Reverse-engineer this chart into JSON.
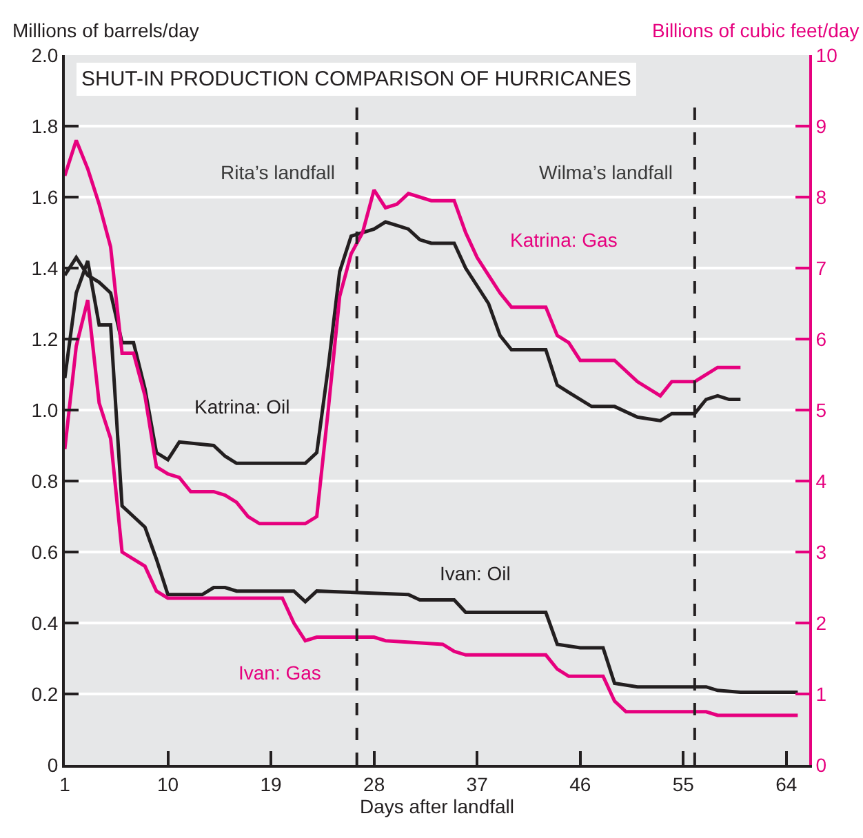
{
  "chart_data": {
    "type": "line",
    "title": "SHUT-IN PRODUCTION COMPARISON OF HURRICANES",
    "xlabel": "Days after landfall",
    "ylabel": "Millions of barrels/day",
    "y2label": "Billions of cubic feet/day",
    "xlim": [
      1,
      66
    ],
    "xticks": [
      1,
      10,
      19,
      28,
      37,
      46,
      55,
      64
    ],
    "ylim": [
      0,
      2
    ],
    "yticks": [
      0,
      0.2,
      0.4,
      0.6,
      0.8,
      {
        "value": 1,
        "label": "1.0"
      },
      1.2,
      1.4,
      1.6,
      1.8,
      {
        "value": 2,
        "label": "2.0"
      }
    ],
    "y2lim": [
      0,
      10
    ],
    "y2ticks": [
      0,
      1,
      2,
      3,
      4,
      5,
      6,
      7,
      8,
      9,
      10
    ],
    "grid": "y",
    "legend": false,
    "marker": "none",
    "line_style": "solid",
    "ref_lines": [
      {
        "axis": "x",
        "value": 26.5,
        "label": "Rita’s landfall",
        "color": "#231f20",
        "line_style": "dashed"
      },
      {
        "axis": "x",
        "value": 56,
        "label": "Wilma’s landfall",
        "color": "#231f20",
        "line_style": "dashed"
      }
    ],
    "series": [
      {
        "name": "Katrina: Oil",
        "color": "#231f20",
        "x": [
          1,
          2,
          3,
          4,
          5,
          6,
          7,
          8,
          9,
          10,
          11,
          14,
          15,
          16,
          18,
          22,
          23,
          24,
          25,
          26,
          28,
          29,
          30,
          31,
          32,
          33,
          35,
          36,
          37,
          38,
          39,
          40,
          43,
          44,
          45,
          47,
          49,
          51,
          53,
          54,
          56,
          57,
          58,
          59,
          60
        ],
        "values": [
          1.38,
          1.43,
          1.38,
          1.36,
          1.33,
          1.19,
          1.19,
          1.06,
          0.88,
          0.86,
          0.91,
          0.9,
          0.87,
          0.85,
          0.85,
          0.85,
          0.88,
          1.12,
          1.39,
          1.49,
          1.51,
          1.53,
          1.52,
          1.51,
          1.48,
          1.47,
          1.47,
          1.4,
          1.35,
          1.3,
          1.21,
          1.17,
          1.17,
          1.07,
          1.05,
          1.01,
          1.01,
          0.98,
          0.97,
          0.99,
          0.99,
          1.03,
          1.04,
          1.03,
          1.03
        ]
      },
      {
        "name": "Katrina: Gas",
        "color": "#e6007e",
        "axis": "y2",
        "x": [
          1,
          2,
          3,
          4,
          5,
          6,
          7,
          8,
          9,
          10,
          11,
          12,
          14,
          15,
          16,
          17,
          18,
          19,
          22,
          23,
          24,
          25,
          26,
          27,
          28,
          29,
          30,
          31,
          32,
          33,
          35,
          36,
          37,
          38,
          39,
          40,
          43,
          44,
          45,
          46,
          47,
          49,
          51,
          53,
          54,
          56,
          58,
          59,
          60
        ],
        "values": [
          8.3,
          8.8,
          8.4,
          7.9,
          7.3,
          5.8,
          5.8,
          5.2,
          4.2,
          4.1,
          4.05,
          3.85,
          3.85,
          3.8,
          3.7,
          3.5,
          3.4,
          3.4,
          3.4,
          3.5,
          5.0,
          6.6,
          7.2,
          7.5,
          8.1,
          7.85,
          7.9,
          8.05,
          8.0,
          7.95,
          7.95,
          7.5,
          7.15,
          6.9,
          6.65,
          6.45,
          6.45,
          6.05,
          5.95,
          5.7,
          5.7,
          5.7,
          5.4,
          5.2,
          5.4,
          5.4,
          5.6,
          5.6,
          5.6
        ]
      },
      {
        "name": "Ivan: Oil",
        "color": "#231f20",
        "x": [
          1,
          2,
          3,
          4,
          5,
          6,
          7,
          8,
          9,
          10,
          13,
          14,
          15,
          16,
          20,
          21,
          22,
          23,
          31,
          32,
          35,
          36,
          43,
          44,
          46,
          48,
          49,
          51,
          57,
          58,
          60,
          65
        ],
        "values": [
          1.09,
          1.33,
          1.42,
          1.24,
          1.24,
          0.73,
          0.7,
          0.67,
          0.58,
          0.48,
          0.48,
          0.5,
          0.5,
          0.49,
          0.49,
          0.49,
          0.46,
          0.49,
          0.48,
          0.465,
          0.465,
          0.43,
          0.43,
          0.34,
          0.33,
          0.33,
          0.23,
          0.22,
          0.22,
          0.21,
          0.205,
          0.205
        ]
      },
      {
        "name": "Ivan: Gas",
        "color": "#e6007e",
        "axis": "y2",
        "x": [
          1,
          2,
          3,
          4,
          5,
          6,
          7,
          8,
          9,
          10,
          20,
          21,
          22,
          23,
          28,
          29,
          34,
          35,
          36,
          39,
          43,
          44,
          45,
          48,
          49,
          50,
          57,
          58,
          65
        ],
        "values": [
          4.45,
          5.9,
          6.55,
          5.1,
          4.6,
          3.0,
          2.9,
          2.8,
          2.45,
          2.35,
          2.35,
          2.0,
          1.75,
          1.8,
          1.8,
          1.75,
          1.7,
          1.6,
          1.55,
          1.55,
          1.55,
          1.35,
          1.25,
          1.25,
          0.9,
          0.75,
          0.75,
          0.7,
          0.7
        ]
      }
    ]
  }
}
